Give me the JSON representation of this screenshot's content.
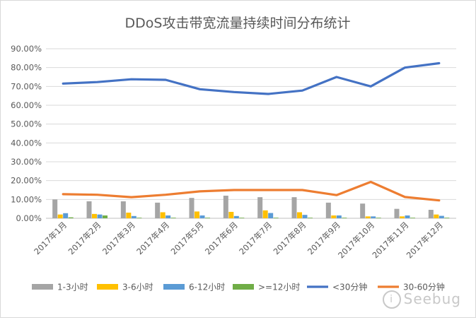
{
  "chart_data": {
    "type": "bar+line",
    "title": "DDoS攻击带宽流量持续时间分布统计",
    "categories": [
      "2017年1月",
      "2017年2月",
      "2017年3月",
      "2017年4月",
      "2017年5月",
      "2017年6月",
      "2017年7月",
      "2017年8月",
      "2017年9月",
      "2017年10月",
      "2017年11月",
      "2017年12月"
    ],
    "y_ticks": [
      "0.00%",
      "10.00%",
      "20.00%",
      "30.00%",
      "40.00%",
      "50.00%",
      "60.00%",
      "70.00%",
      "80.00%",
      "90.00%"
    ],
    "ylim": [
      0,
      90
    ],
    "grid": true,
    "legend_position": "bottom",
    "series": [
      {
        "name": "1-3小时",
        "type": "bar",
        "color": "#a5a5a5",
        "values": [
          10.0,
          9.0,
          9.0,
          8.3,
          10.8,
          12.0,
          11.2,
          11.2,
          8.3,
          7.8,
          5.0,
          4.5
        ]
      },
      {
        "name": "3-6小时",
        "type": "bar",
        "color": "#ffc000",
        "values": [
          2.0,
          2.3,
          3.0,
          3.2,
          3.6,
          3.4,
          4.2,
          3.2,
          1.5,
          1.0,
          1.0,
          2.0
        ]
      },
      {
        "name": "6-12小时",
        "type": "bar",
        "color": "#5b9bd5",
        "values": [
          2.7,
          2.0,
          1.2,
          1.5,
          1.5,
          1.2,
          2.8,
          1.8,
          1.5,
          1.0,
          1.5,
          1.3
        ]
      },
      {
        "name": ">=12小时",
        "type": "bar",
        "color": "#70ad47",
        "values": [
          0.5,
          1.5,
          0.3,
          0.3,
          0.3,
          0.3,
          0.3,
          0.3,
          0.3,
          0.3,
          0.3,
          0.3
        ]
      },
      {
        "name": "<30分钟",
        "type": "line",
        "color": "#4472c4",
        "values": [
          71.5,
          72.3,
          73.8,
          73.5,
          68.5,
          67.0,
          66.0,
          67.8,
          75.0,
          70.0,
          80.0,
          82.3
        ]
      },
      {
        "name": "30-60分钟",
        "type": "line",
        "color": "#ed7d31",
        "values": [
          12.8,
          12.5,
          11.2,
          12.5,
          14.3,
          15.0,
          15.0,
          15.0,
          12.3,
          19.3,
          11.3,
          9.5
        ]
      }
    ]
  },
  "watermark": {
    "badge": "i",
    "text": "Seebug"
  }
}
